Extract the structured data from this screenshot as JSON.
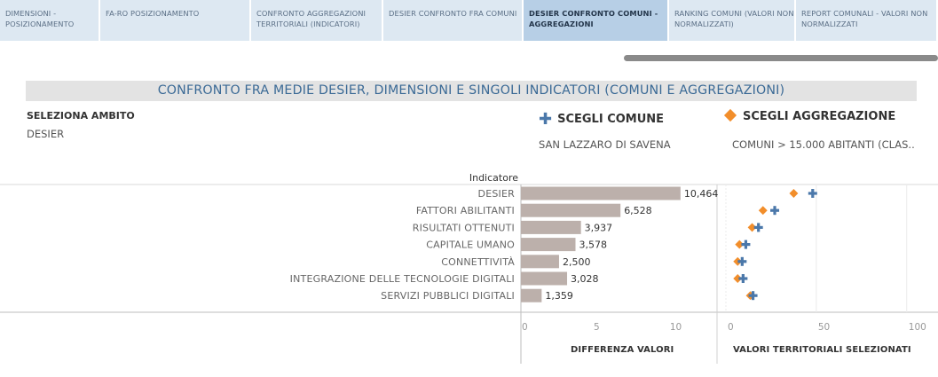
{
  "tabs": [
    {
      "label": "DIMENSIONI - POSIZIONAMENTO",
      "active": false
    },
    {
      "label": "FA-RO POSIZIONAMENTO",
      "active": false
    },
    {
      "label": "CONFRONTO AGGREGAZIONI TERRITORIALI (INDICATORI)",
      "active": false
    },
    {
      "label": "DESIER CONFRONTO FRA COMUNI",
      "active": false
    },
    {
      "label": "DESIER CONFRONTO COMUNI - AGGREGAZIONI",
      "active": true
    },
    {
      "label": "RANKING COMUNI (VALORI NON NORMALIZZATI)",
      "active": false
    },
    {
      "label": "REPORT COMUNALI - VALORI NON NORMALIZZATI",
      "active": false
    }
  ],
  "dashboard": {
    "title": "CONFRONTO FRA MEDIE DESIER, DIMENSIONI E SINGOLI INDICATORI (COMUNI E AGGREGAZIONI)",
    "ambito_label": "SELEZIONA AMBITO",
    "ambito_value": "DESIER",
    "comune_label": "SCEGLI COMUNE",
    "comune_value": "SAN LAZZARO DI SAVENA",
    "aggregazione_label": "SCEGLI AGGREGAZIONE",
    "aggregazione_value": "COMUNI > 15.000 ABITANTI (CLAS..",
    "indicator_header": "Indicatore"
  },
  "colors": {
    "bar": "#bcb0ab",
    "comune_marker": "#4b78aa",
    "aggregazione_marker": "#f28e2b",
    "tab_bg": "#dde8f2",
    "tab_active_bg": "#b7cfe6"
  },
  "chart_data": [
    {
      "type": "bar",
      "orientation": "horizontal",
      "categories": [
        "DESIER",
        "FATTORI ABILITANTI",
        "RISULTATI OTTENUTI",
        "CAPITALE UMANO",
        "CONNETTIVITÀ",
        "INTEGRAZIONE DELLE TECNOLOGIE DIGITALI",
        "SERVIZI PUBBLICI DIGITALI"
      ],
      "values": [
        10.464,
        6.528,
        3.937,
        3.578,
        2.5,
        3.028,
        1.359
      ],
      "value_labels": [
        "10,464",
        "6,528",
        "3,937",
        "3,578",
        "2,500",
        "3,028",
        "1,359"
      ],
      "xlabel": "DIFFERENZA VALORI",
      "xlim": [
        0,
        12.8
      ],
      "ticks": [
        0,
        5,
        10
      ]
    },
    {
      "type": "scatter",
      "categories": [
        "DESIER",
        "FATTORI ABILITANTI",
        "RISULTATI OTTENUTI",
        "CAPITALE UMANO",
        "CONNETTIVITÀ",
        "INTEGRAZIONE DELLE TECNOLOGIE DIGITALI",
        "SERVIZI PUBBLICI DIGITALI"
      ],
      "series": [
        {
          "marker": "diamond",
          "values": [
            37.5,
            20.5,
            14.5,
            7.5,
            6.5,
            6.5,
            13.5
          ]
        },
        {
          "marker": "plus",
          "values": [
            48,
            27,
            18,
            11,
            9,
            9.5,
            15
          ]
        }
      ],
      "xlabel": "VALORI TERRITORIALI SELEZIONATI",
      "xlim": [
        0,
        106
      ],
      "ticks": [
        0,
        50,
        100
      ],
      "grid": true
    }
  ]
}
